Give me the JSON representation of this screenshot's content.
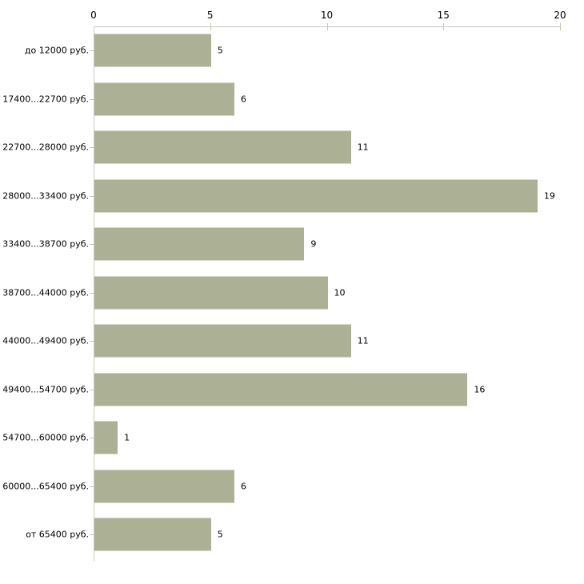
{
  "chart_data": {
    "type": "bar",
    "orientation": "horizontal",
    "title": "",
    "xlabel": "",
    "ylabel": "",
    "categories": [
      "до 12000 руб.",
      "17400...22700 руб.",
      "22700...28000 руб.",
      "28000...33400 руб.",
      "33400...38700 руб.",
      "38700...44000 руб.",
      "44000...49400 руб.",
      "49400...54700 руб.",
      "54700...60000 руб.",
      "60000...65400 руб.",
      "от 65400 руб."
    ],
    "values": [
      5,
      6,
      11,
      19,
      9,
      10,
      11,
      16,
      1,
      6,
      5
    ],
    "value_labels_shown": true,
    "xlim": [
      0,
      20
    ],
    "x_ticks": [
      0,
      5,
      10,
      15,
      20
    ],
    "x_axis_position": "top",
    "grid": false,
    "legend": "none",
    "colors": {
      "bar": "#acb196",
      "axis_line": "#c9c9c1",
      "x_tick": "#c3c89c",
      "category_tick": "#c2c5b1",
      "text": "#000000",
      "background": "#ffffff"
    }
  }
}
